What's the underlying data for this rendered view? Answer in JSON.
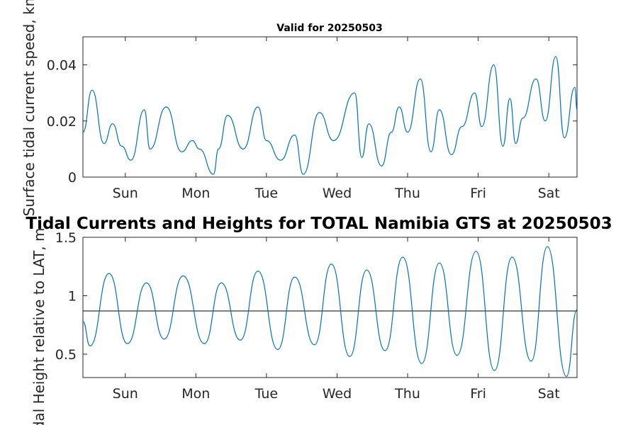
{
  "chart_data": [
    {
      "type": "line",
      "title": "Valid for 20250503",
      "ylabel": "Surface tidal current speed, kn",
      "xlim": [
        0,
        7
      ],
      "ylim": [
        0,
        0.05
      ],
      "xticks": [
        {
          "x": 0.6,
          "label": "Sun"
        },
        {
          "x": 1.6,
          "label": "Mon"
        },
        {
          "x": 2.6,
          "label": "Tue"
        },
        {
          "x": 3.6,
          "label": "Wed"
        },
        {
          "x": 4.6,
          "label": "Thu"
        },
        {
          "x": 5.6,
          "label": "Fri"
        },
        {
          "x": 6.6,
          "label": "Sat"
        }
      ],
      "yticks": [
        {
          "y": 0,
          "label": "0"
        },
        {
          "y": 0.02,
          "label": "0.02"
        },
        {
          "y": 0.04,
          "label": "0.04"
        }
      ],
      "color": "#0072BD",
      "series": [
        {
          "x": [
            0,
            0.13,
            0.3,
            0.42,
            0.55,
            0.68,
            0.87,
            0.95,
            1.18,
            1.4,
            1.55,
            1.65,
            1.85,
            1.92,
            2.05,
            2.27,
            2.48,
            2.6,
            2.8,
            3.0,
            3.12,
            3.35,
            3.55,
            3.85,
            3.95,
            4.05,
            4.23,
            4.37,
            4.48,
            4.6,
            4.78,
            4.93,
            5.05,
            5.22,
            5.37,
            5.55,
            5.65,
            5.82,
            5.95,
            6.05,
            6.13,
            6.23,
            6.42,
            6.55,
            6.7,
            6.82,
            6.97,
            7.0
          ],
          "y": [
            0.016,
            0.031,
            0.012,
            0.019,
            0.011,
            0.006,
            0.024,
            0.01,
            0.025,
            0.009,
            0.013,
            0.01,
            0.001,
            0.01,
            0.022,
            0.01,
            0.025,
            0.013,
            0.006,
            0.015,
            0.001,
            0.023,
            0.013,
            0.03,
            0.007,
            0.019,
            0.004,
            0.016,
            0.025,
            0.016,
            0.035,
            0.009,
            0.024,
            0.008,
            0.018,
            0.03,
            0.018,
            0.04,
            0.011,
            0.028,
            0.012,
            0.021,
            0.035,
            0.02,
            0.043,
            0.014,
            0.032,
            0.024
          ]
        }
      ]
    },
    {
      "type": "line",
      "title": "Tidal Currents and Heights for TOTAL Namibia GTS at 20250503",
      "ylabel": "Tidal Height relative to LAT, m",
      "xlim": [
        0,
        7
      ],
      "ylim": [
        0.3,
        1.5
      ],
      "xticks": [
        {
          "x": 0.6,
          "label": "Sun"
        },
        {
          "x": 1.6,
          "label": "Mon"
        },
        {
          "x": 2.6,
          "label": "Tue"
        },
        {
          "x": 3.6,
          "label": "Wed"
        },
        {
          "x": 4.6,
          "label": "Thu"
        },
        {
          "x": 5.6,
          "label": "Fri"
        },
        {
          "x": 6.6,
          "label": "Sat"
        }
      ],
      "yticks": [
        {
          "y": 0.5,
          "label": "0.5"
        },
        {
          "y": 1,
          "label": "1"
        },
        {
          "y": 1.5,
          "label": "1.5"
        }
      ],
      "reference_line": 0.87,
      "color": "#0072BD",
      "series": [
        {
          "x": [
            0,
            0.1,
            0.37,
            0.63,
            0.9,
            1.15,
            1.42,
            1.72,
            1.96,
            2.23,
            2.48,
            2.76,
            3.0,
            3.28,
            3.52,
            3.78,
            4.02,
            4.28,
            4.53,
            4.8,
            5.05,
            5.3,
            5.57,
            5.83,
            6.08,
            6.35,
            6.58,
            6.85,
            7.0
          ],
          "y": [
            0.78,
            0.57,
            1.19,
            0.59,
            1.11,
            0.63,
            1.17,
            0.59,
            1.11,
            0.62,
            1.21,
            0.54,
            1.16,
            0.58,
            1.27,
            0.48,
            1.22,
            0.53,
            1.33,
            0.42,
            1.28,
            0.49,
            1.38,
            0.36,
            1.33,
            0.44,
            1.42,
            0.31,
            0.88
          ]
        }
      ]
    }
  ]
}
